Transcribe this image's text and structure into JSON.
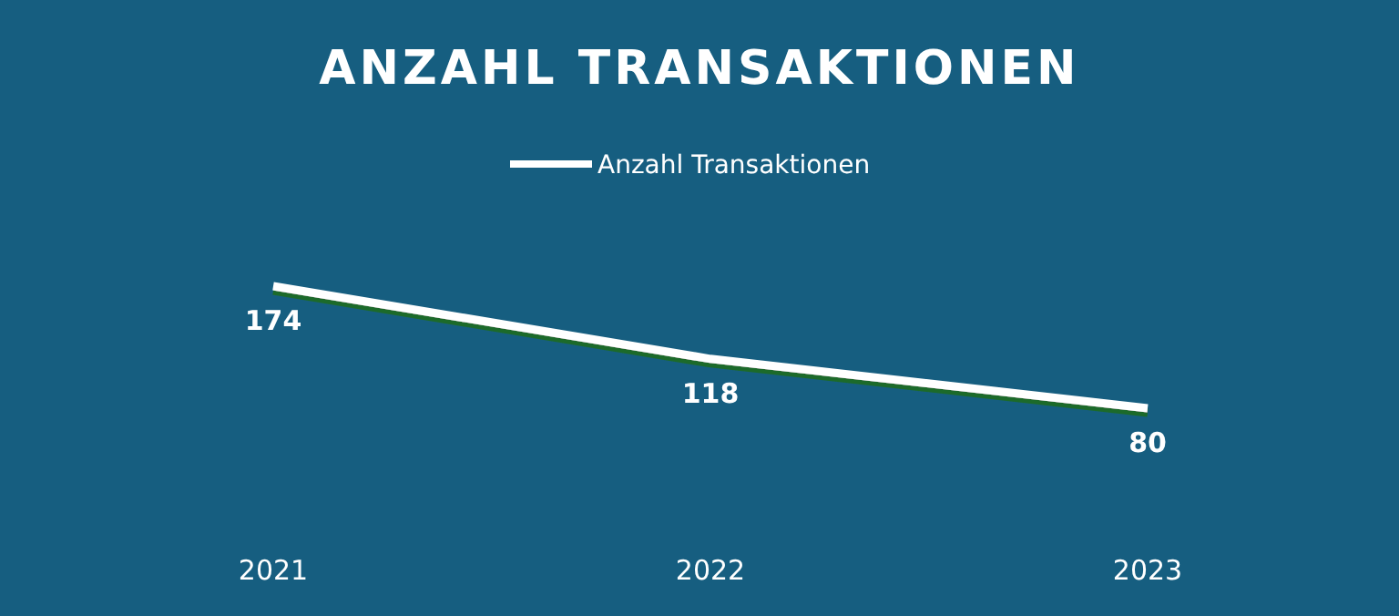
{
  "chart_data": {
    "type": "line",
    "title": "ANZAHL TRANSAKTIONEN",
    "categories": [
      "2021",
      "2022",
      "2023"
    ],
    "series": [
      {
        "name": "Anzahl Transaktionen",
        "color": "#ffffff",
        "values": [
          174,
          118,
          80
        ]
      }
    ],
    "data_labels": true,
    "legend": "top",
    "marker": "none"
  }
}
